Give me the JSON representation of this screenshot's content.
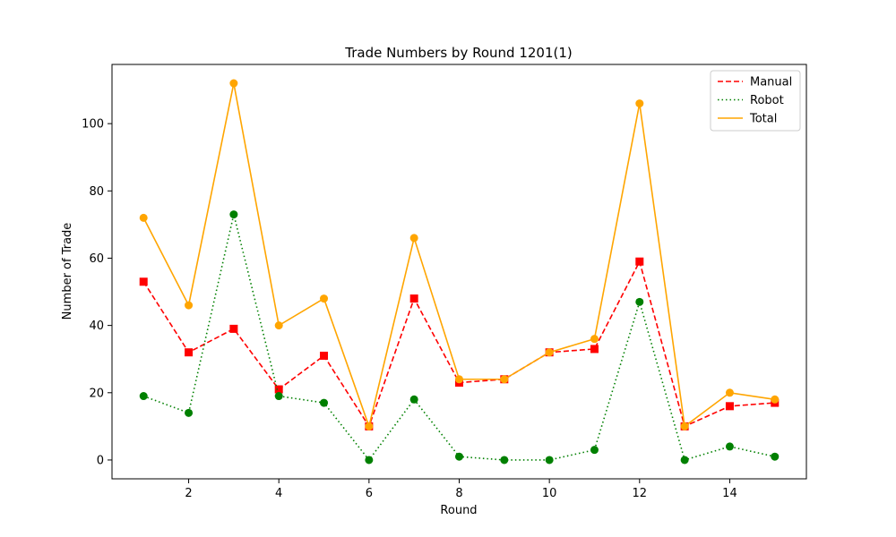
{
  "chart_data": {
    "type": "line",
    "title": "Trade Numbers by Round 1201(1)",
    "xlabel": "Round",
    "ylabel": "Number of Trade",
    "x": [
      1,
      2,
      3,
      4,
      5,
      6,
      7,
      8,
      9,
      10,
      11,
      12,
      13,
      14,
      15
    ],
    "xlim": [
      0.3,
      15.7
    ],
    "ylim": [
      -5.6,
      117.6
    ],
    "xticks": [
      "2",
      "4",
      "6",
      "8",
      "10",
      "12",
      "14"
    ],
    "yticks": [
      "0",
      "20",
      "40",
      "60",
      "80",
      "100"
    ],
    "grid": false,
    "legend_position": "top-right",
    "series": [
      {
        "name": "Manual",
        "color": "#ff0000",
        "line_style": "dashed",
        "marker": "square",
        "marker_color": "#ff0000",
        "values": [
          53,
          32,
          39,
          21,
          31,
          10,
          48,
          23,
          24,
          32,
          33,
          59,
          10,
          16,
          17
        ]
      },
      {
        "name": "Robot",
        "color": "#008000",
        "line_style": "dotted",
        "marker": "circle",
        "marker_color": "#008000",
        "values": [
          19,
          14,
          73,
          19,
          17,
          0,
          18,
          1,
          0,
          0,
          3,
          47,
          0,
          4,
          1
        ]
      },
      {
        "name": "Total",
        "color": "#ffa500",
        "line_style": "solid",
        "marker": "circle",
        "marker_color": "#ffa500",
        "values": [
          72,
          46,
          112,
          40,
          48,
          10,
          66,
          24,
          24,
          32,
          36,
          106,
          10,
          20,
          18
        ]
      }
    ]
  }
}
